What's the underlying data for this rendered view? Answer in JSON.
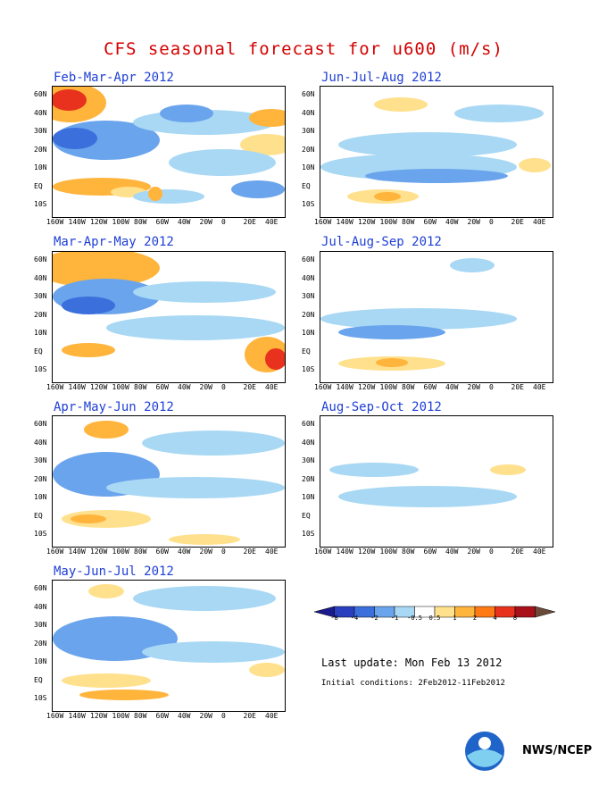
{
  "title": "CFS seasonal forecast for u600 (m/s)",
  "panels": [
    {
      "title": "Feb-Mar-Apr 2012"
    },
    {
      "title": "Jun-Jul-Aug 2012"
    },
    {
      "title": "Mar-Apr-May 2012"
    },
    {
      "title": "Jul-Aug-Sep 2012"
    },
    {
      "title": "Apr-May-Jun 2012"
    },
    {
      "title": "Aug-Sep-Oct 2012"
    },
    {
      "title": "May-Jun-Jul 2012"
    }
  ],
  "y_ticks": [
    "60N",
    "40N",
    "30N",
    "20N",
    "10N",
    "EQ",
    "10S"
  ],
  "x_ticks": [
    "160W",
    "140W",
    "120W",
    "100W",
    "80W",
    "60W",
    "40W",
    "20W",
    "0",
    "20E",
    "40E"
  ],
  "colorbar": {
    "labels": [
      "-8",
      "-4",
      "-2",
      "-1",
      "-0.5",
      "0.5",
      "1",
      "2",
      "4",
      "8"
    ],
    "colors": [
      "#1a1a8c",
      "#2a3fbf",
      "#3a6fdc",
      "#6aa4ec",
      "#a8d8f4",
      "#ffffff",
      "#ffe08c",
      "#ffb43c",
      "#ff7a14",
      "#e8321e",
      "#a8101a",
      "#6b4a3a"
    ]
  },
  "last_update": "Last update: Mon Feb 13 2012",
  "initial_conditions": "Initial conditions: 2Feb2012-11Feb2012",
  "agency": "NWS/NCEP"
}
